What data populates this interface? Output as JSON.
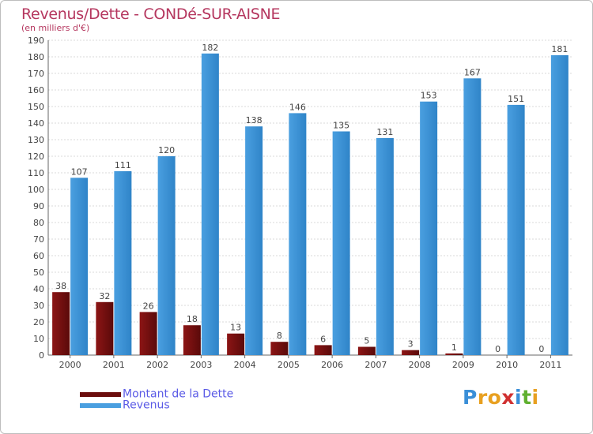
{
  "header": {
    "title": "Revenus/Dette - CONDé-SUR-AISNE",
    "subtitle": "(en milliers d'€)"
  },
  "chart_data": {
    "type": "bar",
    "title": "Revenus/Dette - CONDé-SUR-AISNE",
    "ylabel": "(en milliers d'€)",
    "xlabel": "",
    "categories": [
      "2000",
      "2001",
      "2002",
      "2003",
      "2004",
      "2005",
      "2006",
      "2007",
      "2008",
      "2009",
      "2010",
      "2011"
    ],
    "series": [
      {
        "name": "Montant de la Dette",
        "color": "#8c1515",
        "values": [
          38,
          32,
          26,
          18,
          13,
          8,
          6,
          5,
          3,
          1,
          0,
          0
        ]
      },
      {
        "name": "Revenus",
        "color": "#4a9fe0",
        "values": [
          107,
          111,
          120,
          182,
          138,
          146,
          135,
          131,
          153,
          167,
          151,
          181
        ]
      }
    ],
    "ylim": [
      0,
      190
    ],
    "yticks": [
      0,
      10,
      20,
      30,
      40,
      50,
      60,
      70,
      80,
      90,
      100,
      110,
      120,
      130,
      140,
      150,
      160,
      170,
      180,
      190
    ],
    "grid": true,
    "legend_position": "bottom-left"
  },
  "legend": [
    {
      "label": "Montant de la Dette",
      "color": "#6b0d0d"
    },
    {
      "label": "Revenus",
      "color": "#4a9fe0"
    }
  ],
  "logo": {
    "letters": [
      "P",
      "r",
      "o",
      "x",
      "i",
      "t",
      "i"
    ],
    "colors": [
      "#3a8fd8",
      "#e8a020",
      "#e8a020",
      "#d03030",
      "#3a8fd8",
      "#60b030",
      "#e8a020"
    ]
  }
}
